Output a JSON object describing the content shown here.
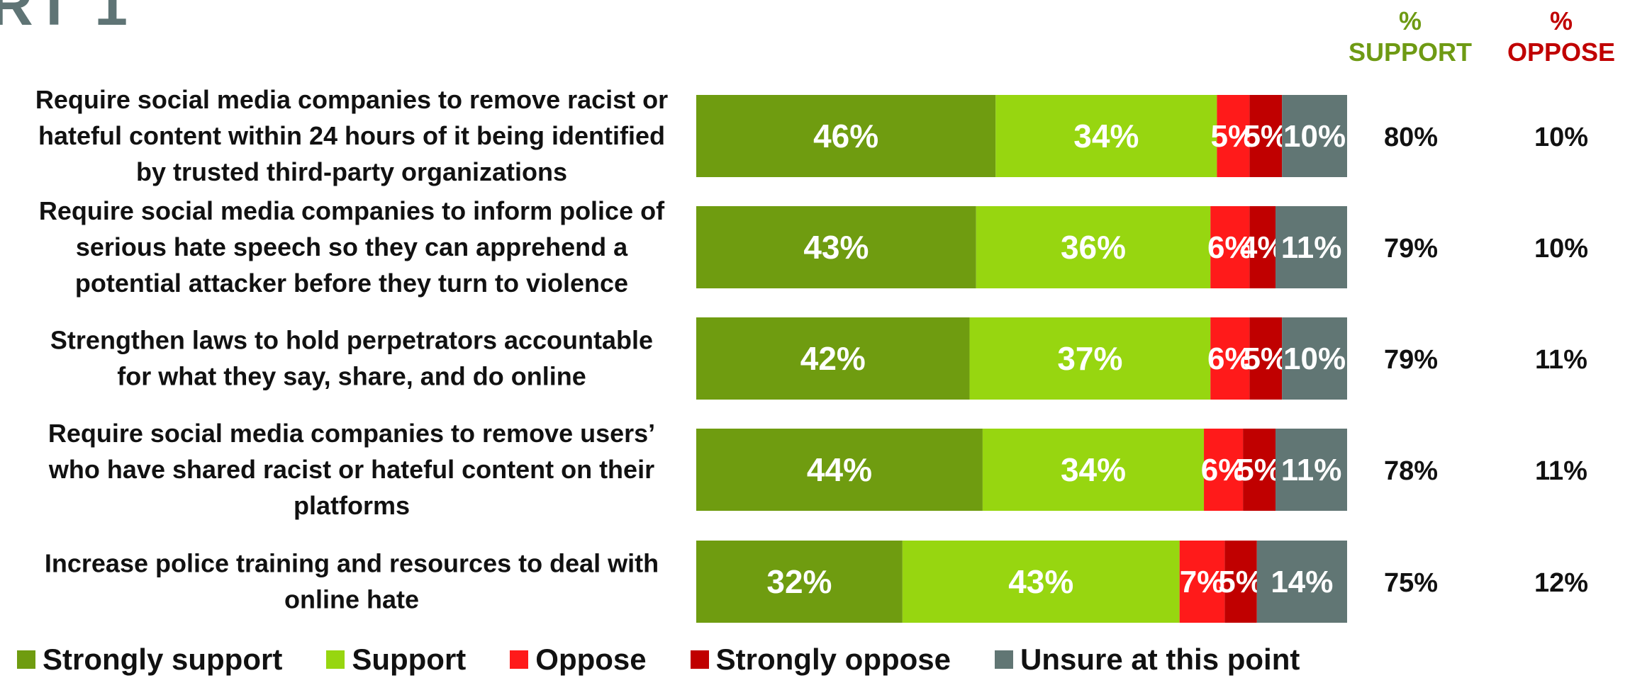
{
  "partial_title": "RT 1",
  "columns": {
    "support_pct": "%",
    "support_word": "SUPPORT",
    "oppose_pct": "%",
    "oppose_word": "OPPOSE"
  },
  "colors": {
    "strongly_support": "#6f9c10",
    "support": "#97d610",
    "oppose": "#ff1a1a",
    "strongly_oppose": "#c00000",
    "unsure": "#617674",
    "support_header": "#6e9a13",
    "oppose_header": "#c00000"
  },
  "chart_data": {
    "type": "bar",
    "orientation": "horizontal",
    "stacked": true,
    "categories": [
      [
        "Require social media companies to remove racist or",
        "hateful content within 24 hours of it being identified",
        "by trusted third-party organizations"
      ],
      [
        "Require social media companies to inform police of",
        "serious hate speech so they can apprehend a",
        "potential attacker before they turn to violence"
      ],
      [
        "Strengthen laws to hold perpetrators accountable",
        "for what they say, share, and do online"
      ],
      [
        "Require social media companies to remove users’",
        "who have shared racist or hateful content on their",
        "platforms"
      ],
      [
        "Increase police training and resources to deal with",
        "online hate"
      ]
    ],
    "series": [
      {
        "name": "Strongly support",
        "values": [
          46,
          43,
          42,
          44,
          32
        ]
      },
      {
        "name": "Support",
        "values": [
          34,
          36,
          37,
          34,
          43
        ]
      },
      {
        "name": "Oppose",
        "values": [
          5,
          6,
          6,
          6,
          7
        ]
      },
      {
        "name": "Strongly oppose",
        "values": [
          5,
          4,
          5,
          5,
          5
        ]
      },
      {
        "name": "Unsure at this point",
        "values": [
          10,
          11,
          10,
          11,
          14
        ]
      }
    ],
    "totals": {
      "support": [
        80,
        79,
        79,
        78,
        75
      ],
      "oppose": [
        10,
        10,
        11,
        11,
        12
      ]
    },
    "value_suffix": "%",
    "legend_position": "bottom"
  }
}
